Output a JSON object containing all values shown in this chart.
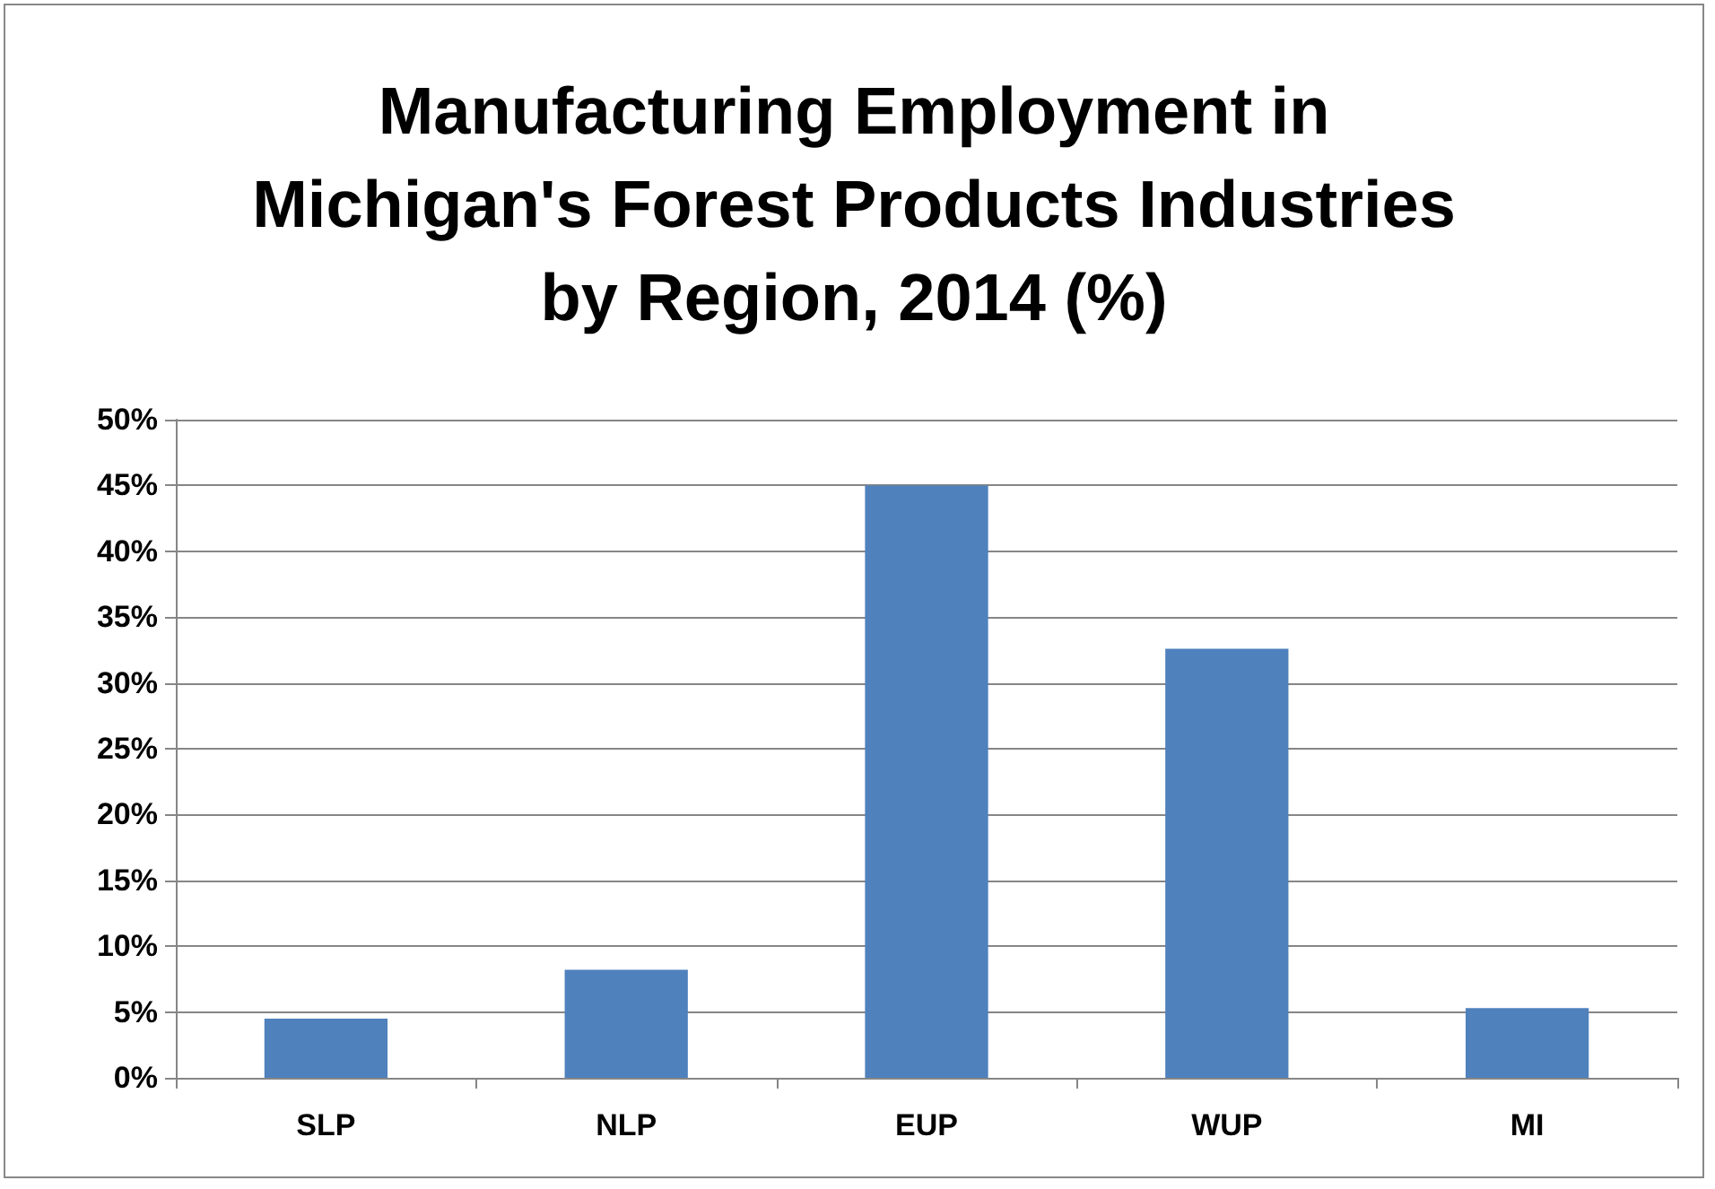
{
  "chart_data": {
    "type": "bar",
    "title": "Manufacturing Employment in\nMichigan's Forest Products Industries\nby Region, 2014 (%)",
    "categories": [
      "SLP",
      "NLP",
      "EUP",
      "WUP",
      "MI"
    ],
    "values": [
      4.5,
      8.2,
      45,
      32.6,
      5.3
    ],
    "color": "#4f81bd",
    "ylim": [
      0,
      50
    ],
    "yticks": [
      {
        "value": 0,
        "label": "0%"
      },
      {
        "value": 5,
        "label": "5%"
      },
      {
        "value": 10,
        "label": "10%"
      },
      {
        "value": 15,
        "label": "15%"
      },
      {
        "value": 20,
        "label": "20%"
      },
      {
        "value": 25,
        "label": "25%"
      },
      {
        "value": 30,
        "label": "30%"
      },
      {
        "value": 35,
        "label": "35%"
      },
      {
        "value": 40,
        "label": "40%"
      },
      {
        "value": 45,
        "label": "45%"
      },
      {
        "value": 50,
        "label": "50%"
      }
    ],
    "grid": "y"
  }
}
